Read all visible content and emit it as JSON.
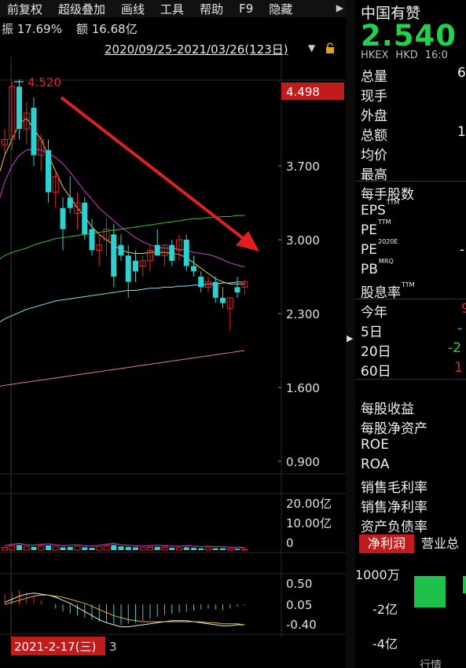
{
  "toolbar": {
    "items": [
      "前复权",
      "超级叠加",
      "画线",
      "工具",
      "帮助",
      "F9",
      "隐藏"
    ],
    "scroll_icon": "triangle-right-icon"
  },
  "info": {
    "amplitude": "振 17.69%",
    "amount": "额 16.68亿"
  },
  "range": {
    "text": "2020/09/25-2021/03/26(123日)",
    "dropdown_icon": "triangle-down-icon",
    "lock_icon": "lock-icon"
  },
  "price_axis": {
    "labels": [
      "3.700",
      "3.000",
      "2.300",
      "1.600",
      "0.900"
    ],
    "values": [
      3.7,
      3.0,
      2.3,
      1.6,
      0.9
    ],
    "current_tag": "4.498",
    "high_marker": "4.520"
  },
  "volume_axis": {
    "labels": [
      "20.00亿",
      "10.00亿",
      "0"
    ]
  },
  "macd_axis": {
    "labels": [
      "0.50",
      "0.05",
      "-0.40"
    ]
  },
  "cursor_date": {
    "text": "2021-2-17(三)",
    "suffix": "3"
  },
  "colors": {
    "up": "#e02424",
    "down": "#2fd0d0",
    "ma5": "#e8e8e8",
    "ma10": "#e8d24a",
    "ma20": "#d040d0",
    "ma60": "#34c034",
    "ma120": "#80e0f0",
    "ma250": "#e08080",
    "trend_arrow": "#e02020",
    "price_green": "#22d24a",
    "tag_red": "#c01c1c"
  },
  "chart_data": {
    "type": "candlestick",
    "candles": [
      {
        "o": 3.9,
        "h": 4.05,
        "l": 3.8,
        "c": 3.95
      },
      {
        "o": 3.95,
        "h": 4.5,
        "l": 3.85,
        "c": 4.45
      },
      {
        "o": 4.45,
        "h": 4.52,
        "l": 3.95,
        "c": 4.05
      },
      {
        "o": 4.05,
        "h": 4.3,
        "l": 3.9,
        "c": 4.2
      },
      {
        "o": 4.25,
        "h": 4.35,
        "l": 3.7,
        "c": 3.8
      },
      {
        "o": 3.8,
        "h": 4.0,
        "l": 3.65,
        "c": 3.95
      },
      {
        "o": 3.85,
        "h": 3.95,
        "l": 3.35,
        "c": 3.45
      },
      {
        "o": 3.45,
        "h": 3.65,
        "l": 3.3,
        "c": 3.6
      },
      {
        "o": 3.3,
        "h": 3.4,
        "l": 2.9,
        "c": 3.1
      },
      {
        "o": 3.4,
        "h": 3.6,
        "l": 3.25,
        "c": 3.3
      },
      {
        "o": 3.25,
        "h": 3.45,
        "l": 3.1,
        "c": 3.35
      },
      {
        "o": 3.35,
        "h": 3.4,
        "l": 3.0,
        "c": 3.05
      },
      {
        "o": 3.1,
        "h": 3.2,
        "l": 2.85,
        "c": 2.9
      },
      {
        "o": 2.9,
        "h": 3.05,
        "l": 2.75,
        "c": 2.95
      },
      {
        "o": 3.0,
        "h": 3.2,
        "l": 2.85,
        "c": 3.1
      },
      {
        "o": 3.05,
        "h": 3.15,
        "l": 2.55,
        "c": 2.65
      },
      {
        "o": 2.95,
        "h": 3.05,
        "l": 2.8,
        "c": 2.85
      },
      {
        "o": 2.85,
        "h": 2.95,
        "l": 2.45,
        "c": 2.6
      },
      {
        "o": 2.8,
        "h": 2.9,
        "l": 2.6,
        "c": 2.7
      },
      {
        "o": 2.75,
        "h": 2.85,
        "l": 2.65,
        "c": 2.8
      },
      {
        "o": 2.8,
        "h": 2.95,
        "l": 2.7,
        "c": 2.9
      },
      {
        "o": 2.95,
        "h": 3.1,
        "l": 2.85,
        "c": 2.85
      },
      {
        "o": 2.85,
        "h": 2.95,
        "l": 2.75,
        "c": 2.95
      },
      {
        "o": 2.95,
        "h": 3.0,
        "l": 2.75,
        "c": 2.8
      },
      {
        "o": 2.9,
        "h": 3.05,
        "l": 2.8,
        "c": 3.0
      },
      {
        "o": 3.0,
        "h": 3.05,
        "l": 2.7,
        "c": 2.75
      },
      {
        "o": 2.75,
        "h": 2.85,
        "l": 2.65,
        "c": 2.7
      },
      {
        "o": 2.65,
        "h": 2.7,
        "l": 2.5,
        "c": 2.55
      },
      {
        "o": 2.55,
        "h": 2.65,
        "l": 2.5,
        "c": 2.6
      },
      {
        "o": 2.6,
        "h": 2.65,
        "l": 2.4,
        "c": 2.45
      },
      {
        "o": 2.45,
        "h": 2.55,
        "l": 2.35,
        "c": 2.4
      },
      {
        "o": 2.35,
        "h": 2.45,
        "l": 2.15,
        "c": 2.45
      },
      {
        "o": 2.55,
        "h": 2.65,
        "l": 2.45,
        "c": 2.5
      },
      {
        "o": 2.55,
        "h": 2.62,
        "l": 2.48,
        "c": 2.6
      }
    ],
    "ma_lines": [
      {
        "key": "ma10",
        "values": [
          3.8,
          3.95,
          4.1,
          4.15,
          4.05,
          3.95,
          3.8,
          3.65,
          3.5,
          3.4,
          3.3,
          3.22,
          3.12,
          3.05,
          3.0,
          2.95,
          2.9,
          2.88,
          2.87,
          2.87,
          2.88,
          2.88,
          2.88,
          2.87,
          2.86,
          2.83,
          2.78,
          2.73,
          2.68,
          2.63,
          2.6,
          2.58,
          2.58,
          2.58
        ]
      },
      {
        "key": "ma20",
        "values": [
          3.55,
          3.7,
          3.8,
          3.85,
          3.86,
          3.85,
          3.82,
          3.78,
          3.72,
          3.64,
          3.55,
          3.46,
          3.38,
          3.3,
          3.24,
          3.18,
          3.12,
          3.07,
          3.02,
          2.98,
          2.95,
          2.93,
          2.92,
          2.92,
          2.91,
          2.9,
          2.88,
          2.87,
          2.86,
          2.84,
          2.81,
          2.78,
          2.76,
          2.74
        ]
      },
      {
        "key": "ma60",
        "values": [
          2.85,
          2.88,
          2.9,
          2.92,
          2.95,
          2.97,
          2.99,
          3.01,
          3.02,
          3.03,
          3.04,
          3.05,
          3.06,
          3.07,
          3.08,
          3.09,
          3.1,
          3.11,
          3.12,
          3.13,
          3.14,
          3.15,
          3.16,
          3.17,
          3.18,
          3.19,
          3.2,
          3.2,
          3.21,
          3.21,
          3.22,
          3.22,
          3.23,
          3.23
        ]
      },
      {
        "key": "ma120",
        "values": [
          2.25,
          2.28,
          2.31,
          2.34,
          2.36,
          2.38,
          2.4,
          2.42,
          2.43,
          2.44,
          2.45,
          2.46,
          2.47,
          2.48,
          2.49,
          2.5,
          2.51,
          2.52,
          2.52,
          2.53,
          2.54,
          2.54,
          2.55,
          2.55,
          2.56,
          2.56,
          2.57,
          2.57,
          2.58,
          2.58,
          2.59,
          2.59,
          2.6,
          2.6
        ]
      },
      {
        "key": "ma250",
        "values": [
          1.62,
          1.63,
          1.64,
          1.65,
          1.66,
          1.67,
          1.68,
          1.69,
          1.7,
          1.71,
          1.72,
          1.73,
          1.74,
          1.75,
          1.76,
          1.77,
          1.78,
          1.79,
          1.8,
          1.81,
          1.82,
          1.83,
          1.84,
          1.85,
          1.86,
          1.87,
          1.88,
          1.89,
          1.9,
          1.91,
          1.92,
          1.93,
          1.94,
          1.95
        ]
      }
    ],
    "volume_ylim": [
      0,
      20
    ],
    "macd_ylim": [
      -0.4,
      0.5
    ]
  },
  "quote": {
    "name": "中国有赞",
    "price": "2.540",
    "exchange": [
      "HKEX",
      "HKD",
      "16:0"
    ],
    "rows": [
      {
        "label": "总量",
        "value": "6",
        "color": "#f0f0f0"
      },
      {
        "label": "现手",
        "value": "",
        "color": "#f0f0f0"
      },
      {
        "label": "外盘",
        "value": "",
        "color": "#f0f0f0"
      },
      {
        "label": "总额",
        "value": "1",
        "color": "#f0f0f0"
      },
      {
        "label": "均价",
        "value": "",
        "color": "#f0f0f0"
      },
      {
        "label": "最高",
        "value": "",
        "color": "#f0f0f0"
      }
    ],
    "rows2": [
      {
        "label": "每手股数",
        "sup": "",
        "value": "",
        "color": "#f0f0f0"
      },
      {
        "label": "EPS",
        "sup": "TTM",
        "value": "",
        "color": "#f0f0f0"
      },
      {
        "label": "PE",
        "sup": "TTM",
        "value": "",
        "color": "#f0f0f0"
      },
      {
        "label": "PE",
        "sup": "2020E",
        "value": "-",
        "color": "#f0f0f0"
      },
      {
        "label": "PB",
        "sup": "MRQ",
        "value": "",
        "color": "#f0f0f0"
      },
      {
        "label": "股息率",
        "sup": "TTM",
        "value": "",
        "color": "#f0f0f0"
      }
    ],
    "perf": [
      {
        "label": "今年",
        "value": "9",
        "color": "#e02424"
      },
      {
        "label": "5日",
        "value": "-",
        "color": "#22d24a"
      },
      {
        "label": "20日",
        "value": "-2",
        "color": "#22d24a"
      },
      {
        "label": "60日",
        "value": "1",
        "color": "#e02424"
      }
    ],
    "fin": [
      "每股收益",
      "每股净资产",
      "ROE",
      "ROA",
      "销售毛利率",
      "销售净利率",
      "资产负债率"
    ]
  },
  "tabs": {
    "active": "净利润",
    "other": "营业总"
  },
  "mini_chart": {
    "labels": [
      "1000万",
      "-2亿",
      "-4亿"
    ],
    "footer": "行情"
  }
}
